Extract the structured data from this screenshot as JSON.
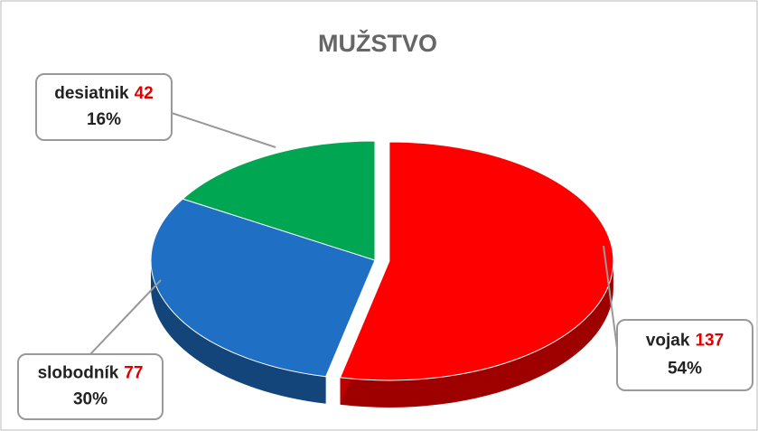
{
  "chart_data": {
    "type": "pie",
    "title": "MUŽSTVO",
    "categories": [
      "vojak",
      "slobodník",
      "desiatnik"
    ],
    "values": [
      137,
      77,
      42
    ],
    "percent_labels": [
      "54%",
      "30%",
      "16%"
    ],
    "colors": [
      "#ff0000",
      "#1f6fc5",
      "#00a651"
    ]
  }
}
